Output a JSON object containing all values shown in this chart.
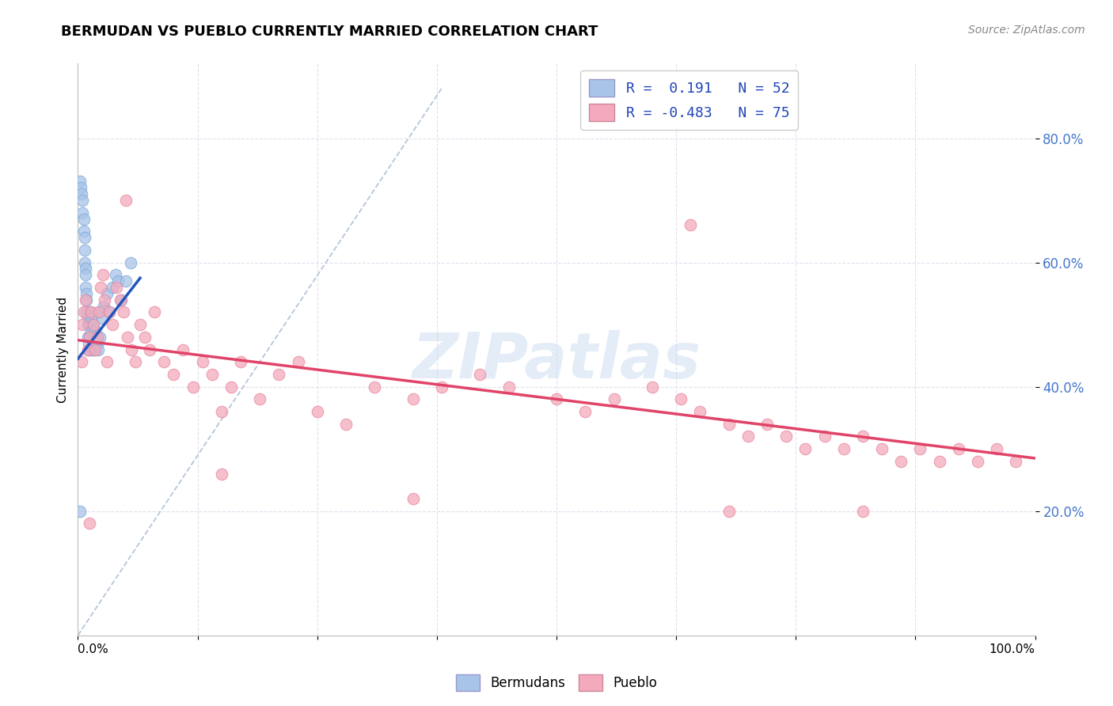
{
  "title": "BERMUDAN VS PUEBLO CURRENTLY MARRIED CORRELATION CHART",
  "source": "Source: ZipAtlas.com",
  "ylabel": "Currently Married",
  "legend_r_blue": "R =  0.191",
  "legend_n_blue": "N = 52",
  "legend_r_pink": "R = -0.483",
  "legend_n_pink": "N = 75",
  "blue_color": "#A8C4E8",
  "pink_color": "#F4AABC",
  "blue_edge": "#7AAAD8",
  "pink_edge": "#E888A0",
  "trend_blue": "#2255BB",
  "trend_pink": "#E04468",
  "trend_dashed_color": "#AABBD0",
  "watermark": "ZIPatlas",
  "xlim": [
    0.0,
    1.0
  ],
  "ylim": [
    0.0,
    0.92
  ],
  "blue_scatter_x": [
    0.002,
    0.003,
    0.004,
    0.005,
    0.005,
    0.006,
    0.006,
    0.007,
    0.007,
    0.007,
    0.008,
    0.008,
    0.008,
    0.009,
    0.009,
    0.009,
    0.01,
    0.01,
    0.01,
    0.011,
    0.011,
    0.011,
    0.012,
    0.012,
    0.013,
    0.013,
    0.014,
    0.014,
    0.015,
    0.015,
    0.016,
    0.016,
    0.017,
    0.017,
    0.018,
    0.018,
    0.019,
    0.02,
    0.021,
    0.022,
    0.023,
    0.025,
    0.027,
    0.03,
    0.033,
    0.036,
    0.039,
    0.042,
    0.045,
    0.05,
    0.002,
    0.055
  ],
  "blue_scatter_y": [
    0.73,
    0.72,
    0.71,
    0.7,
    0.68,
    0.67,
    0.65,
    0.64,
    0.62,
    0.6,
    0.59,
    0.58,
    0.56,
    0.55,
    0.54,
    0.52,
    0.51,
    0.5,
    0.48,
    0.47,
    0.46,
    0.5,
    0.48,
    0.46,
    0.52,
    0.5,
    0.51,
    0.49,
    0.47,
    0.46,
    0.5,
    0.48,
    0.47,
    0.46,
    0.49,
    0.47,
    0.48,
    0.47,
    0.46,
    0.52,
    0.48,
    0.51,
    0.53,
    0.55,
    0.52,
    0.56,
    0.58,
    0.57,
    0.54,
    0.57,
    0.2,
    0.6
  ],
  "pink_scatter_x": [
    0.004,
    0.005,
    0.006,
    0.008,
    0.01,
    0.012,
    0.014,
    0.016,
    0.018,
    0.02,
    0.022,
    0.024,
    0.026,
    0.028,
    0.03,
    0.033,
    0.036,
    0.04,
    0.044,
    0.048,
    0.052,
    0.056,
    0.06,
    0.065,
    0.07,
    0.075,
    0.08,
    0.09,
    0.1,
    0.11,
    0.12,
    0.13,
    0.14,
    0.15,
    0.16,
    0.17,
    0.19,
    0.21,
    0.23,
    0.25,
    0.28,
    0.31,
    0.35,
    0.38,
    0.42,
    0.45,
    0.5,
    0.53,
    0.56,
    0.6,
    0.63,
    0.65,
    0.68,
    0.7,
    0.72,
    0.74,
    0.76,
    0.78,
    0.8,
    0.82,
    0.84,
    0.86,
    0.88,
    0.9,
    0.92,
    0.94,
    0.96,
    0.98,
    0.64,
    0.012,
    0.15,
    0.35,
    0.68,
    0.82,
    0.05
  ],
  "pink_scatter_y": [
    0.44,
    0.5,
    0.52,
    0.54,
    0.46,
    0.48,
    0.52,
    0.5,
    0.46,
    0.48,
    0.52,
    0.56,
    0.58,
    0.54,
    0.44,
    0.52,
    0.5,
    0.56,
    0.54,
    0.52,
    0.48,
    0.46,
    0.44,
    0.5,
    0.48,
    0.46,
    0.52,
    0.44,
    0.42,
    0.46,
    0.4,
    0.44,
    0.42,
    0.36,
    0.4,
    0.44,
    0.38,
    0.42,
    0.44,
    0.36,
    0.34,
    0.4,
    0.38,
    0.4,
    0.42,
    0.4,
    0.38,
    0.36,
    0.38,
    0.4,
    0.38,
    0.36,
    0.34,
    0.32,
    0.34,
    0.32,
    0.3,
    0.32,
    0.3,
    0.32,
    0.3,
    0.28,
    0.3,
    0.28,
    0.3,
    0.28,
    0.3,
    0.28,
    0.66,
    0.18,
    0.26,
    0.22,
    0.2,
    0.2,
    0.7
  ],
  "blue_trend_x": [
    0.0,
    0.065
  ],
  "blue_trend_y": [
    0.445,
    0.575
  ],
  "pink_trend_x": [
    0.0,
    1.0
  ],
  "pink_trend_y": [
    0.475,
    0.285
  ],
  "dashed_trend_x": [
    0.0,
    0.38
  ],
  "dashed_trend_y": [
    0.0,
    0.88
  ],
  "yticks": [
    0.2,
    0.4,
    0.6,
    0.8
  ],
  "ytick_labels": [
    "20.0%",
    "40.0%",
    "60.0%",
    "80.0%"
  ],
  "xticks": [
    0.0,
    0.125,
    0.25,
    0.375,
    0.5,
    0.625,
    0.75,
    0.875,
    1.0
  ],
  "xtick_labels": [
    "0.0%",
    "",
    "",
    "",
    "",
    "",
    "",
    "",
    "100.0%"
  ],
  "grid_color": "#DDDDEE",
  "title_fontsize": 13,
  "source_fontsize": 10
}
